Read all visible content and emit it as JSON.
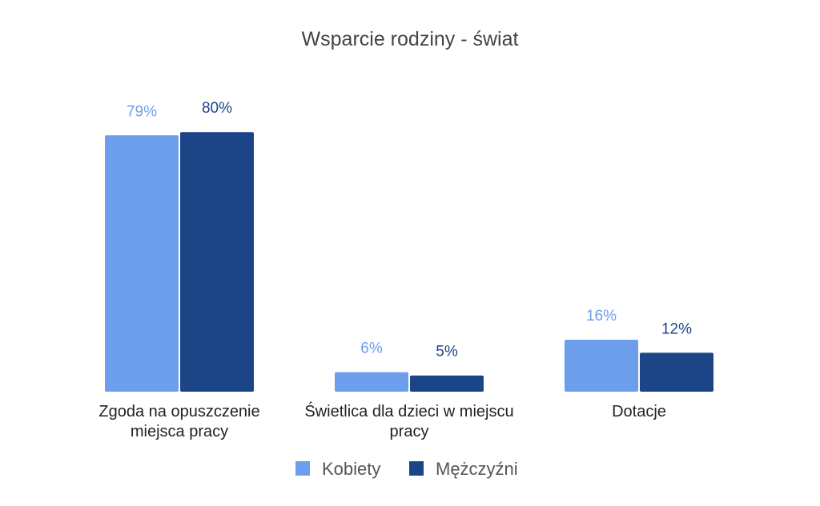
{
  "chart_data": {
    "type": "bar",
    "title": "Wsparcie rodziny - świat",
    "xlabel": "",
    "ylabel": "",
    "ylim": [
      0,
      100
    ],
    "grid": false,
    "legend_position": "bottom",
    "categories": [
      [
        "Zgoda na opuszczenie",
        "miejsca pracy"
      ],
      [
        "Świetlica dla dzieci w miejscu",
        "pracy"
      ],
      [
        "Dotacje"
      ]
    ],
    "series": [
      {
        "name": "Kobiety",
        "color": "#6d9eeb",
        "values": [
          79,
          6,
          16
        ],
        "labels": [
          "79%",
          "6%",
          "16%"
        ]
      },
      {
        "name": "Mężczyźni",
        "color": "#1c4587",
        "values": [
          80,
          5,
          12
        ],
        "labels": [
          "80%",
          "5%",
          "12%"
        ]
      }
    ]
  }
}
